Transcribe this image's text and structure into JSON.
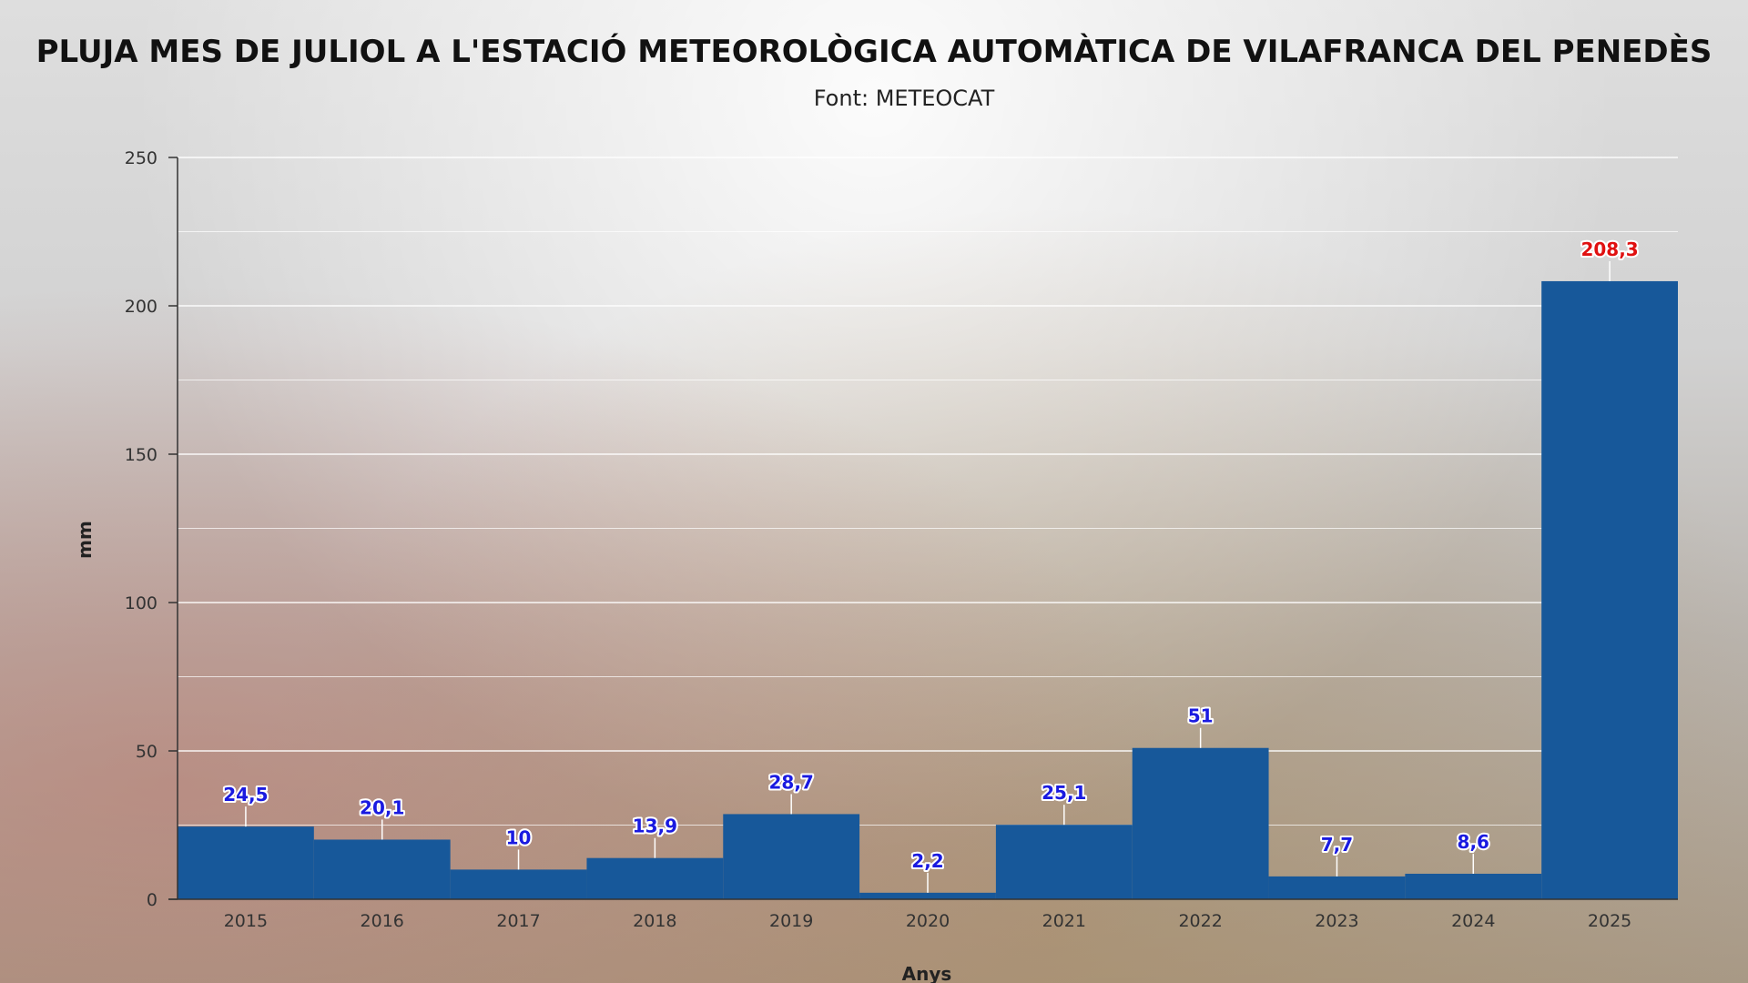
{
  "chart_data": {
    "type": "bar",
    "title": "PLUJA MES DE JULIOL A L'ESTACIÓ METEOROLÒGICA AUTOMÀTICA DE VILAFRANCA DEL PENEDÈS",
    "subtitle": "Font: METEOCAT",
    "xlabel": "Anys",
    "ylabel": "mm",
    "categories": [
      "2015",
      "2016",
      "2017",
      "2018",
      "2019",
      "2020",
      "2021",
      "2022",
      "2023",
      "2024",
      "2025"
    ],
    "values": [
      24.5,
      20.1,
      10,
      13.9,
      28.7,
      2.2,
      25.1,
      51,
      7.7,
      8.6,
      208.3
    ],
    "data_labels": [
      "24,5",
      "20,1",
      "10",
      "13,9",
      "28,7",
      "2,2",
      "25,1",
      "51",
      "7,7",
      "8,6",
      "208,3"
    ],
    "ylim": [
      0,
      250
    ],
    "yticks": [
      0,
      50,
      100,
      150,
      200,
      250
    ],
    "grid": true,
    "legend": "none",
    "colors": {
      "bar": "#17589a",
      "label": "#1a1ae0",
      "highlight_label": "#e01010",
      "grid": "#ffffff",
      "axis": "#333333"
    }
  }
}
